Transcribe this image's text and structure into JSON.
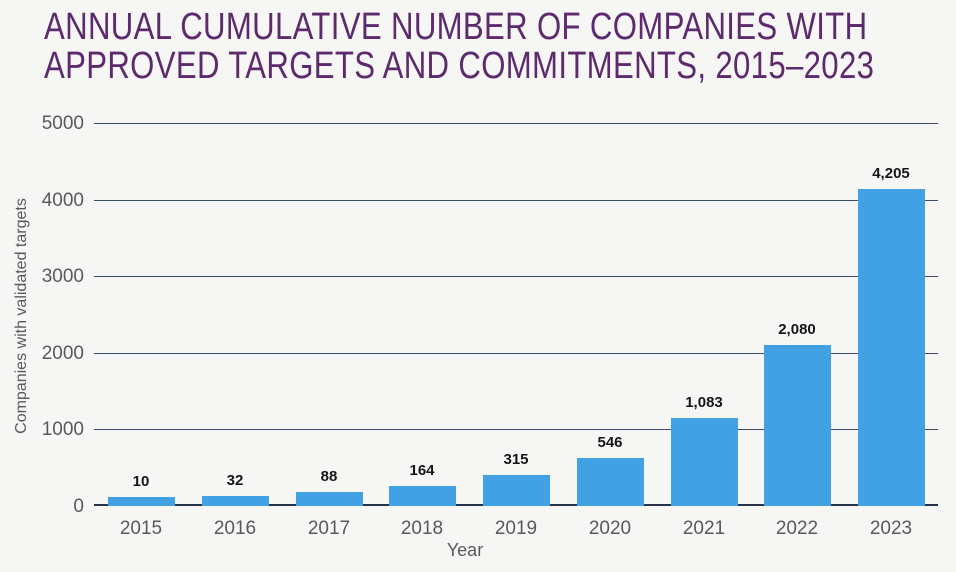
{
  "title": {
    "line1": "ANNUAL CUMULATIVE NUMBER OF COMPANIES WITH",
    "line2": "APPROVED TARGETS AND COMMITMENTS, 2015–2023"
  },
  "chart_data": {
    "type": "bar",
    "title": "ANNUAL CUMULATIVE NUMBER OF COMPANIES WITH APPROVED TARGETS AND COMMITMENTS, 2015–2023",
    "categories": [
      "2015",
      "2016",
      "2017",
      "2018",
      "2019",
      "2020",
      "2021",
      "2022",
      "2023"
    ],
    "values": [
      10,
      32,
      88,
      164,
      315,
      546,
      1083,
      2080,
      4205
    ],
    "value_labels": [
      "10",
      "32",
      "88",
      "164",
      "315",
      "546",
      "1,083",
      "2,080",
      "4,205"
    ],
    "xlabel": "Year",
    "ylabel": "Companies with validated targets",
    "ylim": [
      0,
      5000
    ],
    "ytick_interval": 1000,
    "yticks": [
      "5000",
      "4000",
      "3000",
      "2000",
      "1000",
      "0"
    ],
    "grid": true,
    "legend": false
  },
  "colors": {
    "background": "#f6f6f4",
    "title": "#5d2a6e",
    "bar": "#41a1e3",
    "grid": "#3d4c66",
    "baseline": "#27334a",
    "axis_text": "#58595b",
    "value_label": "#161616"
  }
}
